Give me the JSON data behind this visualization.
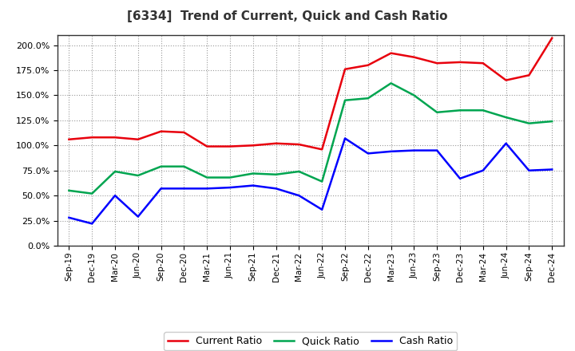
{
  "title": "[6334]  Trend of Current, Quick and Cash Ratio",
  "x_labels": [
    "Sep-19",
    "Dec-19",
    "Mar-20",
    "Jun-20",
    "Sep-20",
    "Dec-20",
    "Mar-21",
    "Jun-21",
    "Sep-21",
    "Dec-21",
    "Mar-22",
    "Jun-22",
    "Sep-22",
    "Dec-22",
    "Mar-23",
    "Jun-23",
    "Sep-23",
    "Dec-23",
    "Mar-24",
    "Jun-24",
    "Sep-24",
    "Dec-24"
  ],
  "current_ratio": [
    1.06,
    1.08,
    1.08,
    1.06,
    1.14,
    1.13,
    0.99,
    0.99,
    1.0,
    1.02,
    1.01,
    0.96,
    1.76,
    1.8,
    1.92,
    1.88,
    1.82,
    1.83,
    1.82,
    1.65,
    1.7,
    2.07
  ],
  "quick_ratio": [
    0.55,
    0.52,
    0.74,
    0.7,
    0.79,
    0.79,
    0.68,
    0.68,
    0.72,
    0.71,
    0.74,
    0.64,
    1.45,
    1.47,
    1.62,
    1.5,
    1.33,
    1.35,
    1.35,
    1.28,
    1.22,
    1.24
  ],
  "cash_ratio": [
    0.28,
    0.22,
    0.5,
    0.29,
    0.57,
    0.57,
    0.57,
    0.58,
    0.6,
    0.57,
    0.5,
    0.36,
    1.07,
    0.92,
    0.94,
    0.95,
    0.95,
    0.67,
    0.75,
    1.02,
    0.75,
    0.76
  ],
  "current_color": "#e8000d",
  "quick_color": "#00a550",
  "cash_color": "#0000ff",
  "bg_color": "#ffffff",
  "plot_bg_color": "#ffffff",
  "grid_color": "#999999",
  "ylim": [
    0.0,
    2.1
  ],
  "yticks": [
    0.0,
    0.25,
    0.5,
    0.75,
    1.0,
    1.25,
    1.5,
    1.75,
    2.0
  ],
  "legend_labels": [
    "Current Ratio",
    "Quick Ratio",
    "Cash Ratio"
  ],
  "line_width": 1.8
}
